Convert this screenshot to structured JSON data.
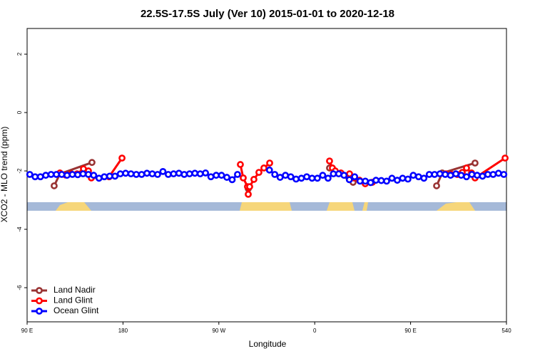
{
  "chart_data": {
    "type": "line",
    "title": "22.5S-17.5S July (Ver 10)   2015-01-01 to 2020-12-18",
    "xlabel": "Longitude",
    "ylabel": "XCO2 - MLO trend (ppm)",
    "xlim": [
      90,
      540
    ],
    "ylim": [
      -7.17,
      2.88
    ],
    "xticks": [
      {
        "value": 90,
        "label": "90 E"
      },
      180,
      {
        "value": 270,
        "label": "90 W"
      },
      {
        "value": 360,
        "label": "0"
      },
      {
        "value": 450,
        "label": "90 E"
      },
      540
    ],
    "yticks": [
      -6,
      -4,
      -2,
      0,
      2
    ],
    "legend": "bottom-left",
    "series": [
      {
        "name": "Land Nadir",
        "color": "#993333",
        "x": [
          115.4,
          120.8,
          150.9,
          null,
          297.6,
          null,
          373.9,
          396,
          null,
          474.4,
          479.7,
          510.5
        ],
        "values": [
          -2.51,
          -2.1,
          -1.71,
          null,
          -2.61,
          null,
          -1.9,
          -2.39,
          null,
          -2.51,
          -2.07,
          -1.73
        ]
      },
      {
        "name": "Land Glint",
        "color": "#ff0000",
        "x": [
          120.8,
          126.2,
          131.5,
          136.9,
          142.9,
          147.6,
          150.3,
          167.0,
          179.1,
          null,
          290.2,
          292.9,
          296.9,
          297.6,
          298.9,
          302.9,
          307.6,
          312.3,
          317.7,
          null,
          373.9,
          376.6,
          379.3,
          384.6,
          392.7,
          396.7,
          402.1,
          407.4,
          414.1,
          null,
          483.1,
          488.4,
          493.8,
          498.5,
          502.5,
          507.2,
          510.5,
          538.7
        ],
        "values": [
          -2.07,
          -2.14,
          -2.1,
          -2.1,
          -1.93,
          -2.0,
          -2.24,
          -2.2,
          -1.56,
          null,
          -1.78,
          -2.24,
          -2.54,
          -2.8,
          -2.54,
          -2.29,
          -2.05,
          -1.9,
          -1.73,
          null,
          -1.66,
          -1.9,
          -2.0,
          -2.07,
          -2.1,
          -2.24,
          -2.32,
          -2.44,
          -2.39,
          null,
          -2.1,
          -2.12,
          -2.12,
          -2.05,
          -1.9,
          -2.07,
          -2.24,
          -1.56
        ]
      },
      {
        "name": "Ocean Glint",
        "color": "#0000ff",
        "x": [
          92.5,
          97.5,
          102.5,
          107.5,
          112.5,
          117.5,
          122.5,
          127.5,
          132.5,
          137.5,
          142.5,
          147.5,
          152.5,
          157.5,
          162.5,
          167.5,
          172.5,
          177.5,
          182.5,
          187.5,
          192.5,
          197.5,
          202.5,
          207.5,
          212.5,
          217.5,
          222.5,
          227.5,
          232.5,
          237.5,
          242.5,
          247.5,
          252.5,
          257.5,
          262.5,
          267.5,
          272.5,
          277.5,
          282.5,
          287.5,
          302.5,
          317.5,
          322.5,
          327.5,
          332.5,
          337.5,
          342.5,
          347.5,
          352.5,
          357.5,
          362.5,
          367.5,
          372.5,
          377.5,
          382.5,
          387.5,
          392.5,
          397.5,
          402.5,
          407.5,
          412.5,
          417.5,
          422.5,
          427.5,
          432.5,
          437.5,
          442.5,
          447.5,
          452.5,
          457.5,
          462.5,
          467.5,
          472.5,
          477.5,
          482.5,
          487.5,
          492.5,
          497.5,
          502.5,
          507.5,
          512.5,
          517.5,
          522.5,
          527.5,
          532.5,
          537.5
        ],
        "values": [
          -2.12,
          -2.2,
          -2.2,
          -2.15,
          -2.12,
          -2.12,
          -2.12,
          -2.15,
          -2.12,
          -2.13,
          -2.1,
          -2.12,
          -2.15,
          -2.25,
          -2.2,
          -2.18,
          -2.18,
          -2.1,
          -2.08,
          -2.1,
          -2.12,
          -2.12,
          -2.08,
          -2.1,
          -2.12,
          -2.02,
          -2.12,
          -2.1,
          -2.08,
          -2.12,
          -2.1,
          -2.08,
          -2.1,
          -2.07,
          -2.2,
          -2.15,
          -2.15,
          -2.22,
          -2.3,
          -2.12,
          null,
          -1.97,
          -2.12,
          -2.22,
          -2.15,
          -2.2,
          -2.28,
          -2.25,
          -2.2,
          -2.25,
          -2.25,
          -2.15,
          -2.25,
          -2.1,
          -2.1,
          -2.15,
          -2.3,
          -2.2,
          -2.35,
          -2.35,
          -2.4,
          -2.32,
          -2.33,
          -2.35,
          -2.25,
          -2.32,
          -2.25,
          -2.28,
          -2.15,
          -2.2,
          -2.25,
          -2.12,
          -2.12,
          -2.1,
          -2.12,
          -2.15,
          -2.1,
          -2.15,
          -2.2,
          -2.12,
          -2.15,
          -2.18,
          -2.12,
          -2.12,
          -2.08,
          -2.12
        ]
      }
    ]
  }
}
